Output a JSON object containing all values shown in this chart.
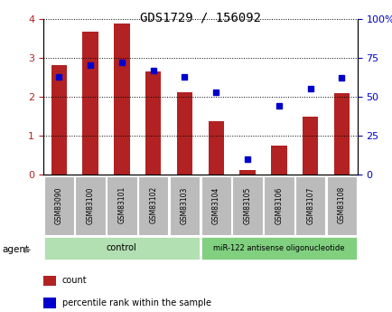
{
  "title": "GDS1729 / 156092",
  "categories": [
    "GSM83090",
    "GSM83100",
    "GSM83101",
    "GSM83102",
    "GSM83103",
    "GSM83104",
    "GSM83105",
    "GSM83106",
    "GSM83107",
    "GSM83108"
  ],
  "count_values": [
    2.82,
    3.67,
    3.87,
    2.65,
    2.12,
    1.37,
    0.13,
    0.75,
    1.5,
    2.1
  ],
  "percentile_values": [
    63,
    70,
    72,
    67,
    63,
    53,
    10,
    44,
    55,
    62
  ],
  "bar_color": "#b22222",
  "dot_color": "#0000cc",
  "ylim_left": [
    0,
    4
  ],
  "ylim_right": [
    0,
    100
  ],
  "yticks_left": [
    0,
    1,
    2,
    3,
    4
  ],
  "yticks_right": [
    0,
    25,
    50,
    75,
    100
  ],
  "yticklabels_right": [
    "0",
    "25",
    "50",
    "75",
    "100%"
  ],
  "bg_plot": "#ffffff",
  "xlabel_bg": "#cccccc",
  "control_label": "control",
  "treatment_label": "miR-122 antisense oligonucleotide",
  "agent_label": "agent",
  "legend_count_label": "count",
  "legend_pct_label": "percentile rank within the sample",
  "bar_width": 0.5,
  "control_bg": "#b2e0b2",
  "treatment_bg": "#80d080",
  "xlabel_bg2": "#bbbbbb"
}
